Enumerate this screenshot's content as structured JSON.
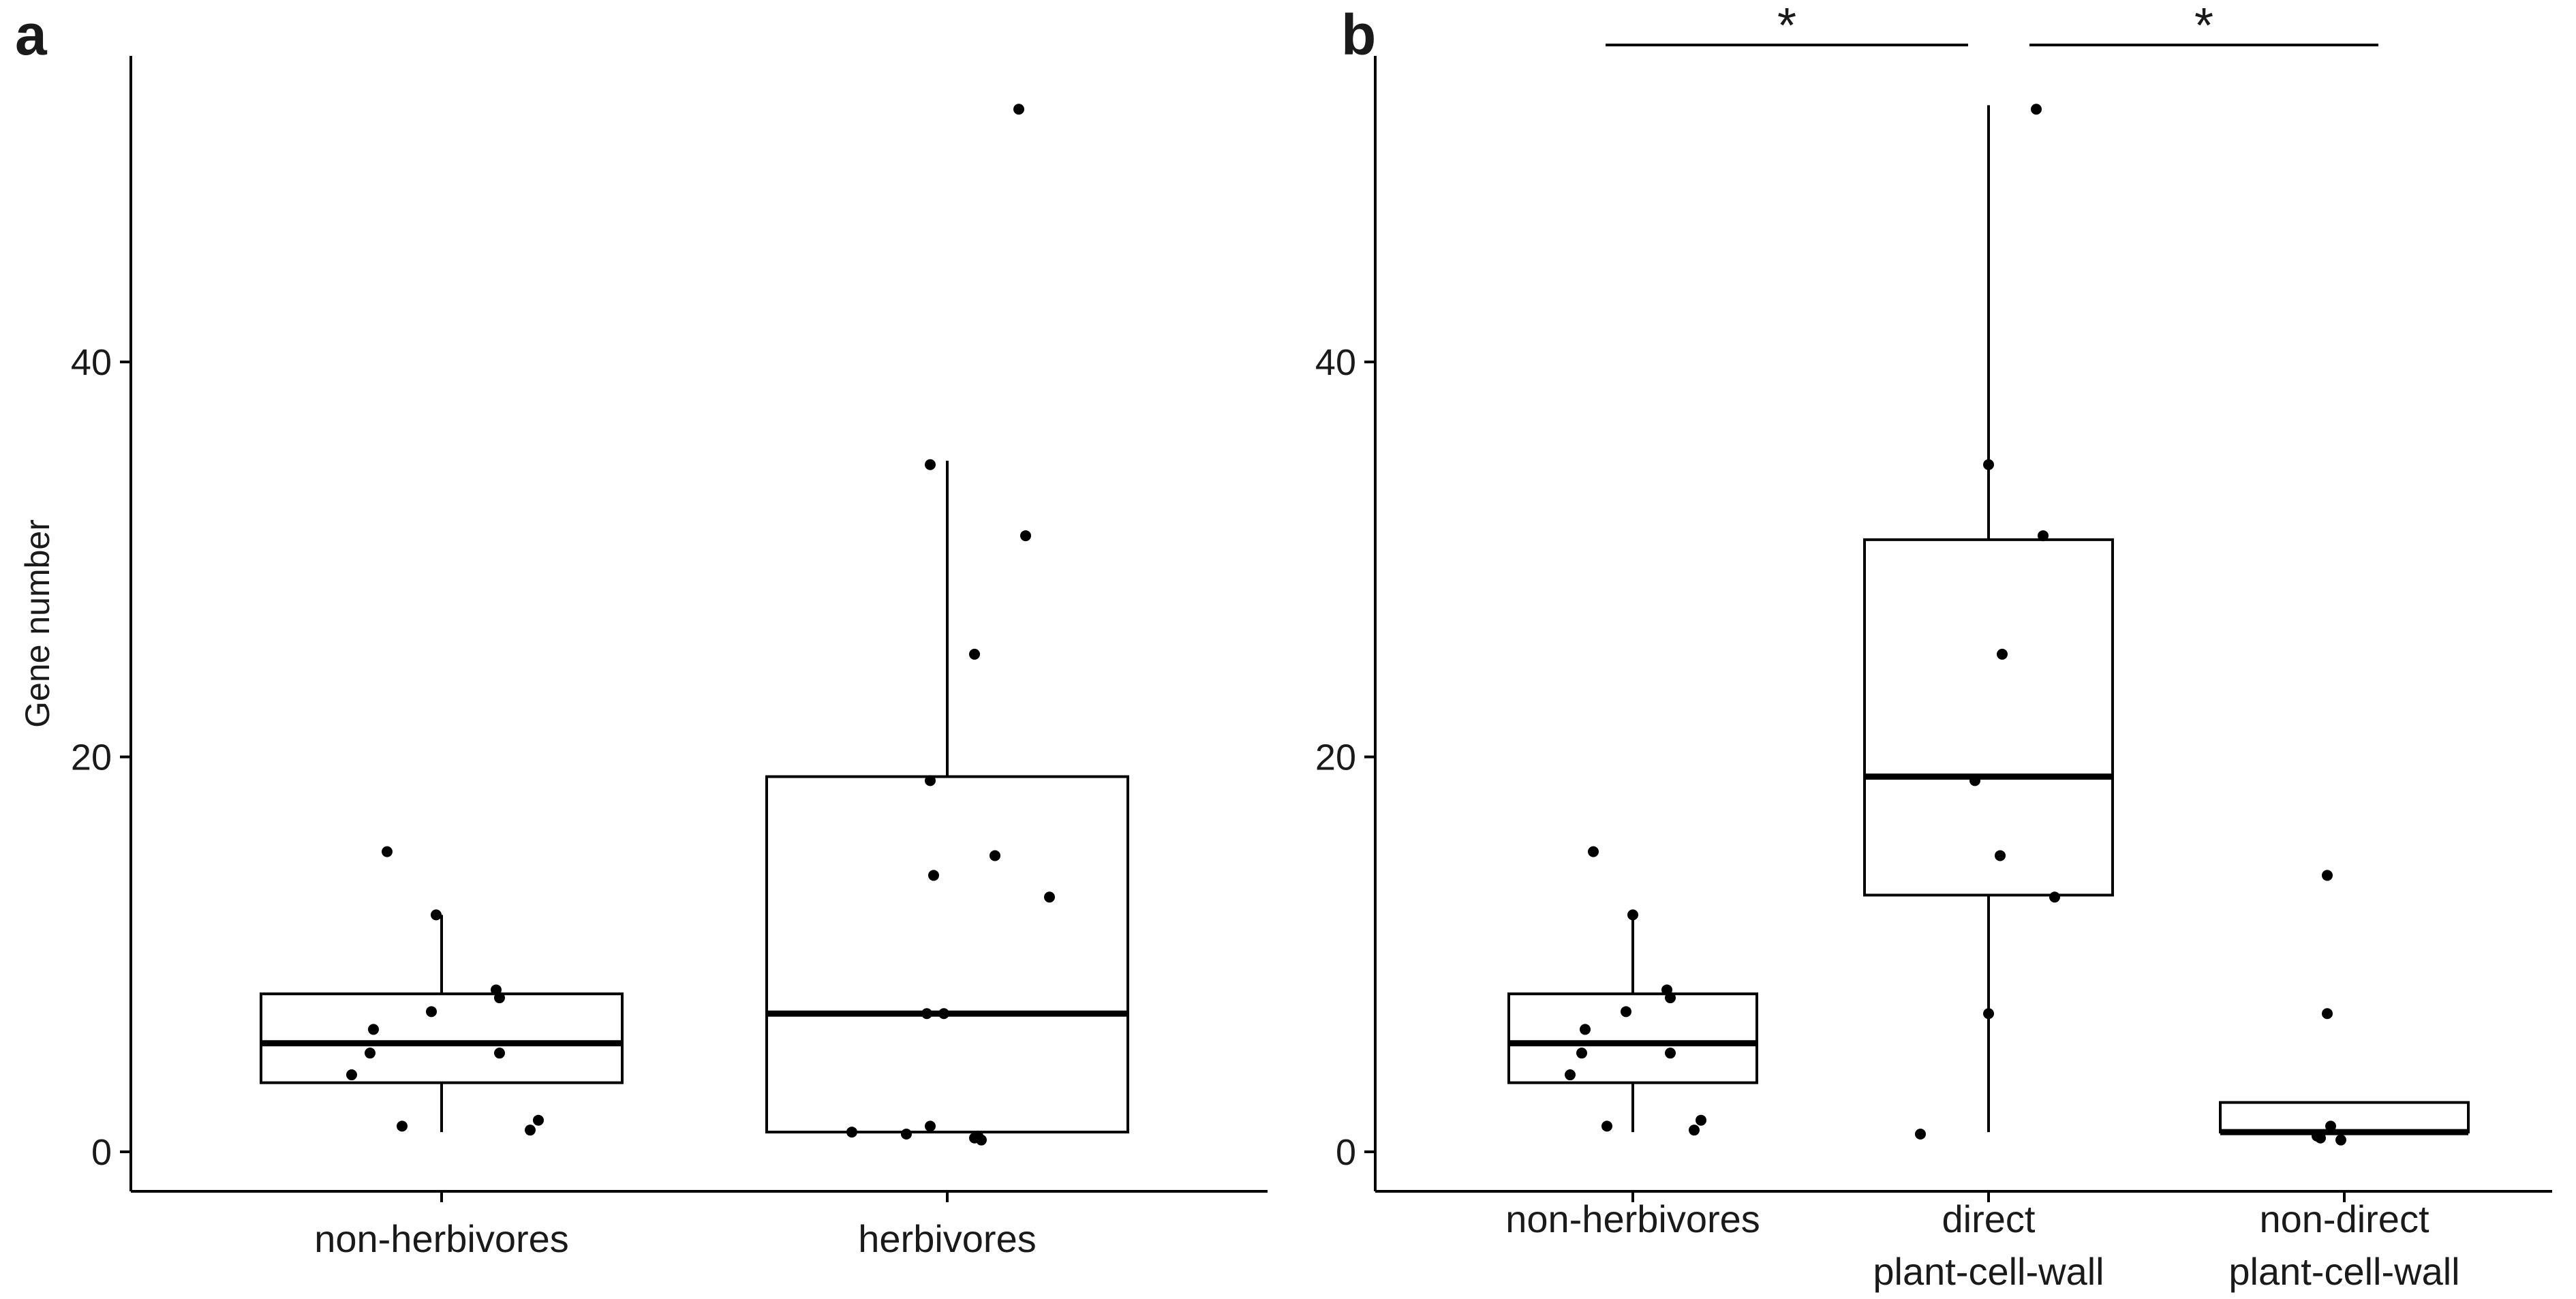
{
  "chart_data": [
    {
      "panel": "a",
      "type": "box",
      "xlabel": "",
      "ylabel": "Gene number",
      "ylim": [
        -2,
        55.5
      ],
      "yticks": [
        0,
        20,
        40
      ],
      "grid": false,
      "categories": [
        "non-herbivores",
        "herbivores"
      ],
      "boxes": [
        {
          "category": "non-herbivores",
          "whisker_low": 1,
          "q1": 3.5,
          "median": 5.5,
          "q3": 8,
          "whisker_high": 12
        },
        {
          "category": "herbivores",
          "whisker_low": 1,
          "q1": 1,
          "median": 7,
          "q3": 19,
          "whisker_high": 35
        }
      ],
      "points": [
        {
          "category": "non-herbivores",
          "values": [
            15.2,
            12,
            8.2,
            7.8,
            7.1,
            6.2,
            5,
            5,
            3.9,
            1.6,
            1.3,
            1.1
          ]
        },
        {
          "category": "herbivores",
          "values": [
            52.8,
            34.8,
            31.2,
            25.2,
            18.8,
            15,
            14,
            12.9,
            7,
            7,
            1.3,
            1,
            0.9,
            0.8,
            0.7,
            0.6
          ]
        }
      ]
    },
    {
      "panel": "b",
      "type": "box",
      "xlabel": "",
      "ylabel": "",
      "ylim": [
        -2,
        55.5
      ],
      "yticks": [
        0,
        20,
        40
      ],
      "grid": false,
      "categories": [
        {
          "line1": "non-herbivores",
          "line2": ""
        },
        {
          "line1": "direct",
          "line2": "plant-cell-wall"
        },
        {
          "line1": "non-direct",
          "line2": "plant-cell-wall"
        }
      ],
      "boxes": [
        {
          "category": "non-herbivores",
          "whisker_low": 1,
          "q1": 3.5,
          "median": 5.5,
          "q3": 8,
          "whisker_high": 12
        },
        {
          "category": "direct plant-cell-wall",
          "whisker_low": 1,
          "q1": 13,
          "median": 19,
          "q3": 31,
          "whisker_high": 53
        },
        {
          "category": "non-direct plant-cell-wall",
          "whisker_low": 1,
          "q1": 1,
          "median": 1,
          "q3": 2.5,
          "whisker_high": 2.5
        }
      ],
      "points": [
        {
          "category": "non-herbivores",
          "values": [
            15.2,
            12,
            8.2,
            7.8,
            7.1,
            6.2,
            5,
            5,
            3.9,
            1.6,
            1.3,
            1.1
          ]
        },
        {
          "category": "direct plant-cell-wall",
          "values": [
            52.8,
            34.8,
            31.2,
            25.2,
            18.8,
            15,
            12.9,
            7,
            0.9
          ]
        },
        {
          "category": "non-direct plant-cell-wall",
          "values": [
            14,
            7,
            1.3,
            0.8,
            0.7,
            0.6
          ]
        }
      ],
      "significance": [
        {
          "from": "non-herbivores",
          "to": "direct plant-cell-wall",
          "label": "*"
        },
        {
          "from": "direct plant-cell-wall",
          "to": "non-direct plant-cell-wall",
          "label": "*"
        }
      ]
    }
  ]
}
